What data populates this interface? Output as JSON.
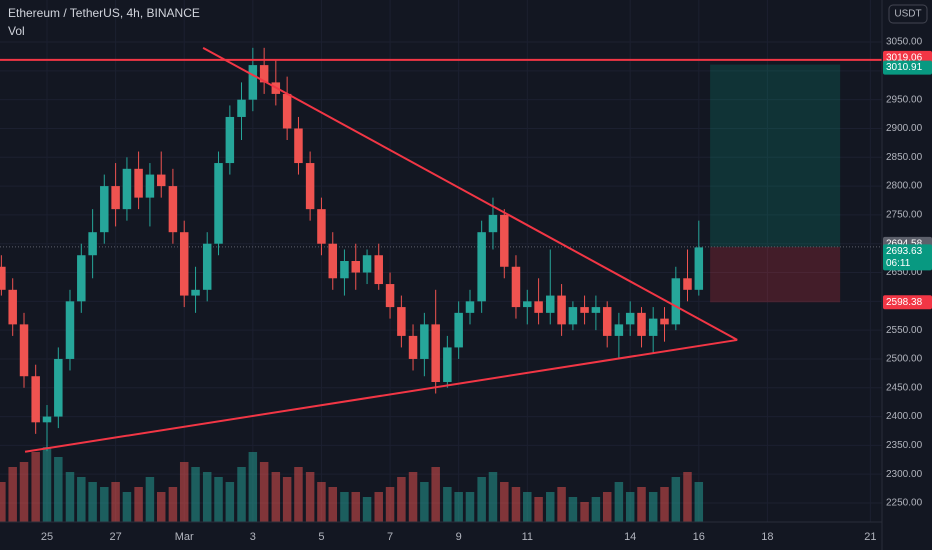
{
  "chart_data": {
    "type": "candlestick",
    "title": "Ethereum / TetherUS, 4h, BINANCE",
    "subtitle": "Vol",
    "currency": "USDT",
    "x": [
      23.67,
      24,
      24.33,
      24.67,
      25,
      25.33,
      25.67,
      26,
      26.33,
      26.67,
      27,
      27.33,
      27.67,
      28,
      28.33,
      28.67,
      29,
      29.33,
      29.67,
      30,
      30.33,
      30.67,
      31,
      31.33,
      31.67,
      32,
      32.33,
      32.67,
      33,
      33.33,
      33.67,
      34,
      34.33,
      34.67,
      35,
      35.33,
      35.67,
      36,
      36.33,
      36.67,
      37,
      37.33,
      37.67,
      38,
      38.33,
      38.67,
      39,
      39.33,
      39.67,
      40,
      40.33,
      40.67,
      41,
      41.33,
      41.67,
      42,
      42.33,
      42.67,
      43,
      43.33,
      43.67,
      44
    ],
    "open": [
      2660,
      2620,
      2560,
      2470,
      2390,
      2400,
      2500,
      2600,
      2680,
      2720,
      2800,
      2760,
      2830,
      2780,
      2820,
      2800,
      2720,
      2610,
      2620,
      2700,
      2840,
      2920,
      2950,
      3010,
      2980,
      2960,
      2900,
      2840,
      2760,
      2700,
      2640,
      2670,
      2650,
      2680,
      2630,
      2590,
      2540,
      2500,
      2560,
      2460,
      2520,
      2580,
      2600,
      2720,
      2750,
      2660,
      2590,
      2600,
      2580,
      2610,
      2560,
      2590,
      2580,
      2590,
      2540,
      2560,
      2580,
      2540,
      2570,
      2560,
      2640,
      2620
    ],
    "high": [
      2680,
      2640,
      2580,
      2490,
      2420,
      2520,
      2620,
      2700,
      2760,
      2820,
      2840,
      2850,
      2860,
      2840,
      2860,
      2830,
      2740,
      2660,
      2720,
      2860,
      2940,
      2980,
      3040,
      3040,
      3020,
      2990,
      2920,
      2860,
      2780,
      2720,
      2690,
      2700,
      2690,
      2700,
      2650,
      2610,
      2560,
      2580,
      2620,
      2540,
      2600,
      2620,
      2740,
      2780,
      2760,
      2680,
      2620,
      2640,
      2690,
      2630,
      2600,
      2610,
      2610,
      2600,
      2580,
      2600,
      2590,
      2590,
      2590,
      2660,
      2690,
      2740
    ],
    "low": [
      2610,
      2540,
      2450,
      2370,
      2340,
      2380,
      2480,
      2580,
      2640,
      2700,
      2730,
      2740,
      2760,
      2730,
      2780,
      2700,
      2590,
      2580,
      2600,
      2680,
      2820,
      2880,
      2930,
      2960,
      2940,
      2880,
      2820,
      2740,
      2680,
      2620,
      2610,
      2620,
      2630,
      2620,
      2570,
      2520,
      2480,
      2470,
      2440,
      2450,
      2500,
      2560,
      2580,
      2690,
      2640,
      2570,
      2560,
      2560,
      2560,
      2540,
      2550,
      2560,
      2550,
      2520,
      2500,
      2540,
      2520,
      2510,
      2530,
      2550,
      2600,
      2610
    ],
    "close": [
      2620,
      2560,
      2470,
      2390,
      2400,
      2500,
      2600,
      2680,
      2720,
      2800,
      2760,
      2830,
      2780,
      2820,
      2800,
      2720,
      2610,
      2620,
      2700,
      2840,
      2920,
      2950,
      3010,
      2980,
      2960,
      2900,
      2840,
      2760,
      2700,
      2640,
      2670,
      2650,
      2680,
      2630,
      2590,
      2540,
      2500,
      2560,
      2460,
      2520,
      2580,
      2600,
      2720,
      2750,
      2660,
      2590,
      2600,
      2580,
      2610,
      2560,
      2590,
      2580,
      2590,
      2540,
      2560,
      2580,
      2540,
      2570,
      2560,
      2640,
      2620,
      2693.63
    ],
    "volume": [
      40,
      55,
      60,
      70,
      75,
      65,
      50,
      45,
      40,
      35,
      40,
      30,
      35,
      45,
      30,
      35,
      60,
      55,
      50,
      45,
      40,
      55,
      70,
      60,
      50,
      45,
      55,
      50,
      40,
      35,
      30,
      30,
      25,
      30,
      35,
      45,
      50,
      40,
      55,
      35,
      30,
      30,
      45,
      50,
      40,
      35,
      30,
      25,
      30,
      35,
      25,
      20,
      25,
      30,
      40,
      30,
      35,
      30,
      35,
      45,
      50,
      40
    ],
    "vlim": [
      0,
      100
    ],
    "up_color": "#26a69a",
    "down_color": "#ef5350",
    "xlim": [
      23.63,
      49.34
    ],
    "ylim": [
      2217,
      3123
    ],
    "xticks": [
      {
        "value": 25,
        "label": "25"
      },
      {
        "value": 27,
        "label": "27"
      },
      {
        "value": 29,
        "label": "Mar"
      },
      {
        "value": 31,
        "label": "3"
      },
      {
        "value": 33,
        "label": "5"
      },
      {
        "value": 35,
        "label": "7"
      },
      {
        "value": 37,
        "label": "9"
      },
      {
        "value": 39,
        "label": "11"
      },
      {
        "value": 42,
        "label": "14"
      },
      {
        "value": 44,
        "label": "16"
      },
      {
        "value": 46,
        "label": "18"
      },
      {
        "value": 49,
        "label": "21"
      }
    ],
    "yticks": [
      {
        "value": 2250,
        "label": "2250.00"
      },
      {
        "value": 2300,
        "label": "2300.00"
      },
      {
        "value": 2350,
        "label": "2350.00"
      },
      {
        "value": 2400,
        "label": "2400.00"
      },
      {
        "value": 2450,
        "label": "2450.00"
      },
      {
        "value": 2500,
        "label": "2500.00"
      },
      {
        "value": 2550,
        "label": "2550.00"
      },
      {
        "value": 2600,
        "label": "2600.00"
      },
      {
        "value": 2650,
        "label": "2650.00"
      },
      {
        "value": 2700,
        "label": "2700.00"
      },
      {
        "value": 2750,
        "label": "2750.00"
      },
      {
        "value": 2800,
        "label": "2800.00"
      },
      {
        "value": 2850,
        "label": "2850.00"
      },
      {
        "value": 2900,
        "label": "2900.00"
      },
      {
        "value": 2950,
        "label": "2950.00"
      },
      {
        "value": 3000,
        "label": "3000.00"
      },
      {
        "value": 3050,
        "label": "3050.00"
      }
    ],
    "hline": {
      "value": 3019.06,
      "color": "#f23645"
    },
    "trendlines": [
      {
        "x": [
          29.55,
          45.12
        ],
        "y": [
          3040,
          2533
        ],
        "color": "#f23645"
      },
      {
        "x": [
          24.36,
          45.12
        ],
        "y": [
          2339,
          2533
        ],
        "color": "#f23645"
      }
    ],
    "position": {
      "x": [
        44.33,
        48.12
      ],
      "entry": 2694.58,
      "target": 3010.91,
      "stop": 2598.38,
      "target_color": "#089981",
      "entry_color": "#5d606b",
      "stop_color": "#f23645"
    },
    "last_price": {
      "countdown": "06:11",
      "color": "#089981"
    }
  }
}
